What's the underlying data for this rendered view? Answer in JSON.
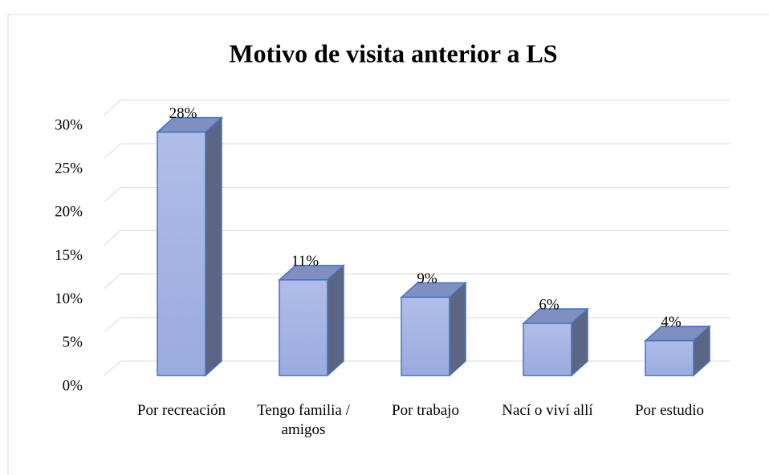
{
  "chart_data": {
    "type": "bar3d",
    "title": "Motivo de visita anterior a LS",
    "categories": [
      "Por recreación",
      "Tengo familia / amigos",
      "Por trabajo",
      "Nací o viví allí",
      "Por estudio"
    ],
    "values": [
      28,
      11,
      9,
      6,
      4
    ],
    "value_labels": [
      "28%",
      "11%",
      "9%",
      "6%",
      "4%"
    ],
    "color": "#9aabe0",
    "ylim": [
      0,
      30
    ],
    "yticks": [
      {
        "value": 0,
        "label": "0%"
      },
      {
        "value": 5,
        "label": "5%"
      },
      {
        "value": 10,
        "label": "10%"
      },
      {
        "value": 15,
        "label": "15%"
      },
      {
        "value": 20,
        "label": "20%"
      },
      {
        "value": 25,
        "label": "25%"
      },
      {
        "value": 30,
        "label": "30%"
      }
    ],
    "grid": true
  }
}
